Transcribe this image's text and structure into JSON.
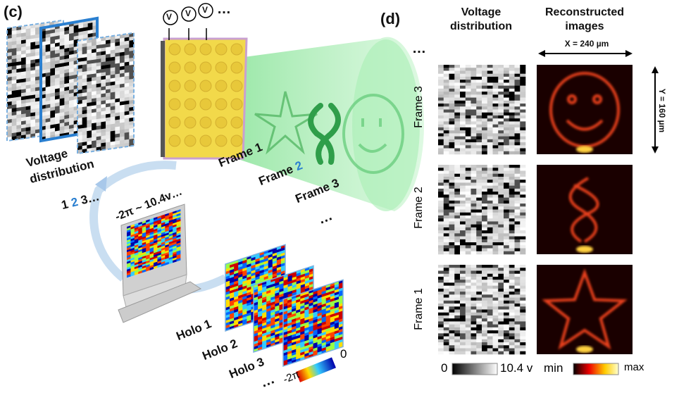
{
  "panel_c": {
    "label": "(c)",
    "voltage_label_line1": "Voltage",
    "voltage_label_line2": "distribution",
    "sequence": {
      "n1": "1",
      "n2": "2",
      "n3": "3…"
    },
    "voltmeter_symbol": "V",
    "voltmeter_more": "…",
    "frames": {
      "f1": "Frame 1",
      "f2_text": "Frame ",
      "f2_num": "2",
      "f3": "Frame 3",
      "more": "…"
    },
    "monitor_range": "-2π ~ 10.4v…",
    "holos": [
      "Holo 1",
      "Holo 2",
      "Holo 3"
    ],
    "holo_more": "…",
    "phase_colorbar": {
      "min": "-2π",
      "max": "0"
    }
  },
  "panel_d": {
    "label": "(d)",
    "col_voltage_line1": "Voltage",
    "col_voltage_line2": "distribution",
    "col_recon_line1": "Reconstructed",
    "col_recon_line2": "images",
    "more": "…",
    "x_dim": "X = 240 µm",
    "y_dim": "Y = 160 µm",
    "rows": [
      "Frame 3",
      "Frame 2",
      "Frame 1"
    ],
    "voltage_colorbar": {
      "min": "0",
      "max": "10.4 v"
    },
    "intensity_colorbar": {
      "min": "min",
      "max": "max"
    }
  },
  "colors": {
    "accent_blue": "#2a7fd0",
    "cone_green": "#8fe8a0",
    "slm_yellow": "#f2d94a",
    "recon_bg": "#1a0000"
  }
}
